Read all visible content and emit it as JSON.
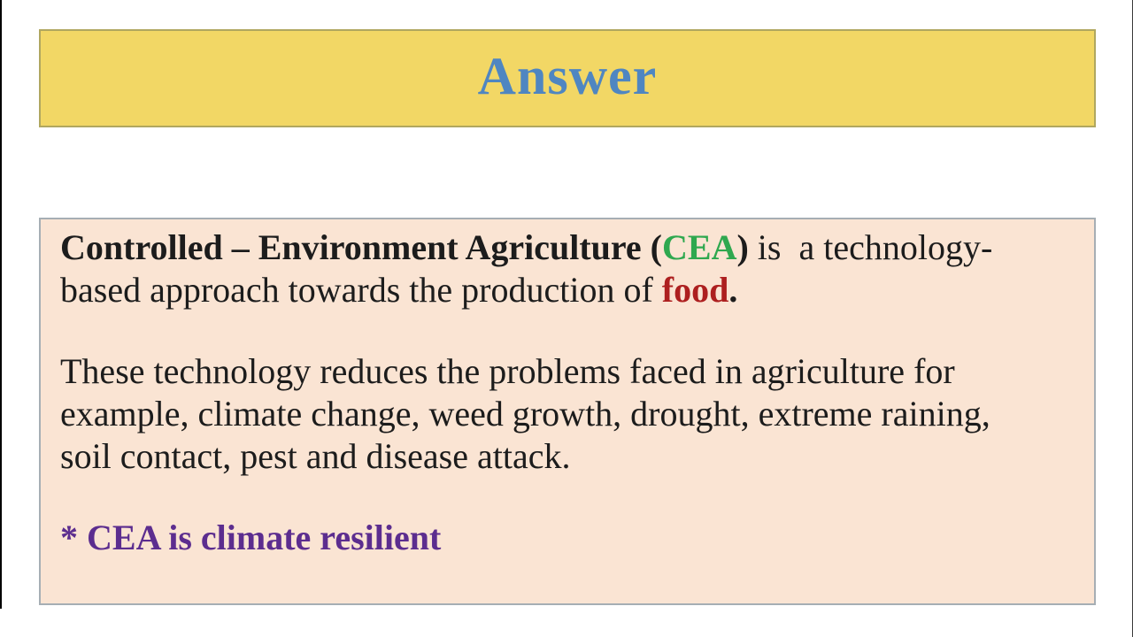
{
  "header": {
    "label": "Answer"
  },
  "colors": {
    "header_bg": "#f2d765",
    "header_border": "#b0a75f",
    "header_text": "#4f86c1",
    "content_bg": "#fae4d3",
    "content_border": "#a6aeb4",
    "body_text": "#1c1c1c",
    "green": "#2fa84f",
    "red": "#ad1f1f",
    "purple": "#5c2d8f",
    "edge": "#000000"
  },
  "content": {
    "paragraphs": [
      {
        "lines": [
          [
            {
              "t": "Controlled – Environment Agriculture (",
              "b": true
            },
            {
              "t": "CEA",
              "b": true,
              "c": "green"
            },
            {
              "t": ")",
              "b": true
            },
            {
              "t": " is  a technology-",
              "b": false
            }
          ],
          [
            {
              "t": "based approach towards the production of ",
              "b": false
            },
            {
              "t": "food",
              "b": true,
              "c": "red"
            },
            {
              "t": ".",
              "b": true
            }
          ]
        ]
      },
      {
        "lines": [
          [
            {
              "t": "These technology reduces the problems faced in agriculture for",
              "b": false
            }
          ],
          [
            {
              "t": "example, climate change, weed growth, drought, extreme raining,",
              "b": false
            }
          ],
          [
            {
              "t": "soil contact, pest and disease attack.",
              "b": false
            }
          ]
        ]
      },
      {
        "lines": [
          [
            {
              "t": "* CEA is climate resilient",
              "b": true,
              "c": "purple"
            }
          ]
        ]
      }
    ]
  }
}
